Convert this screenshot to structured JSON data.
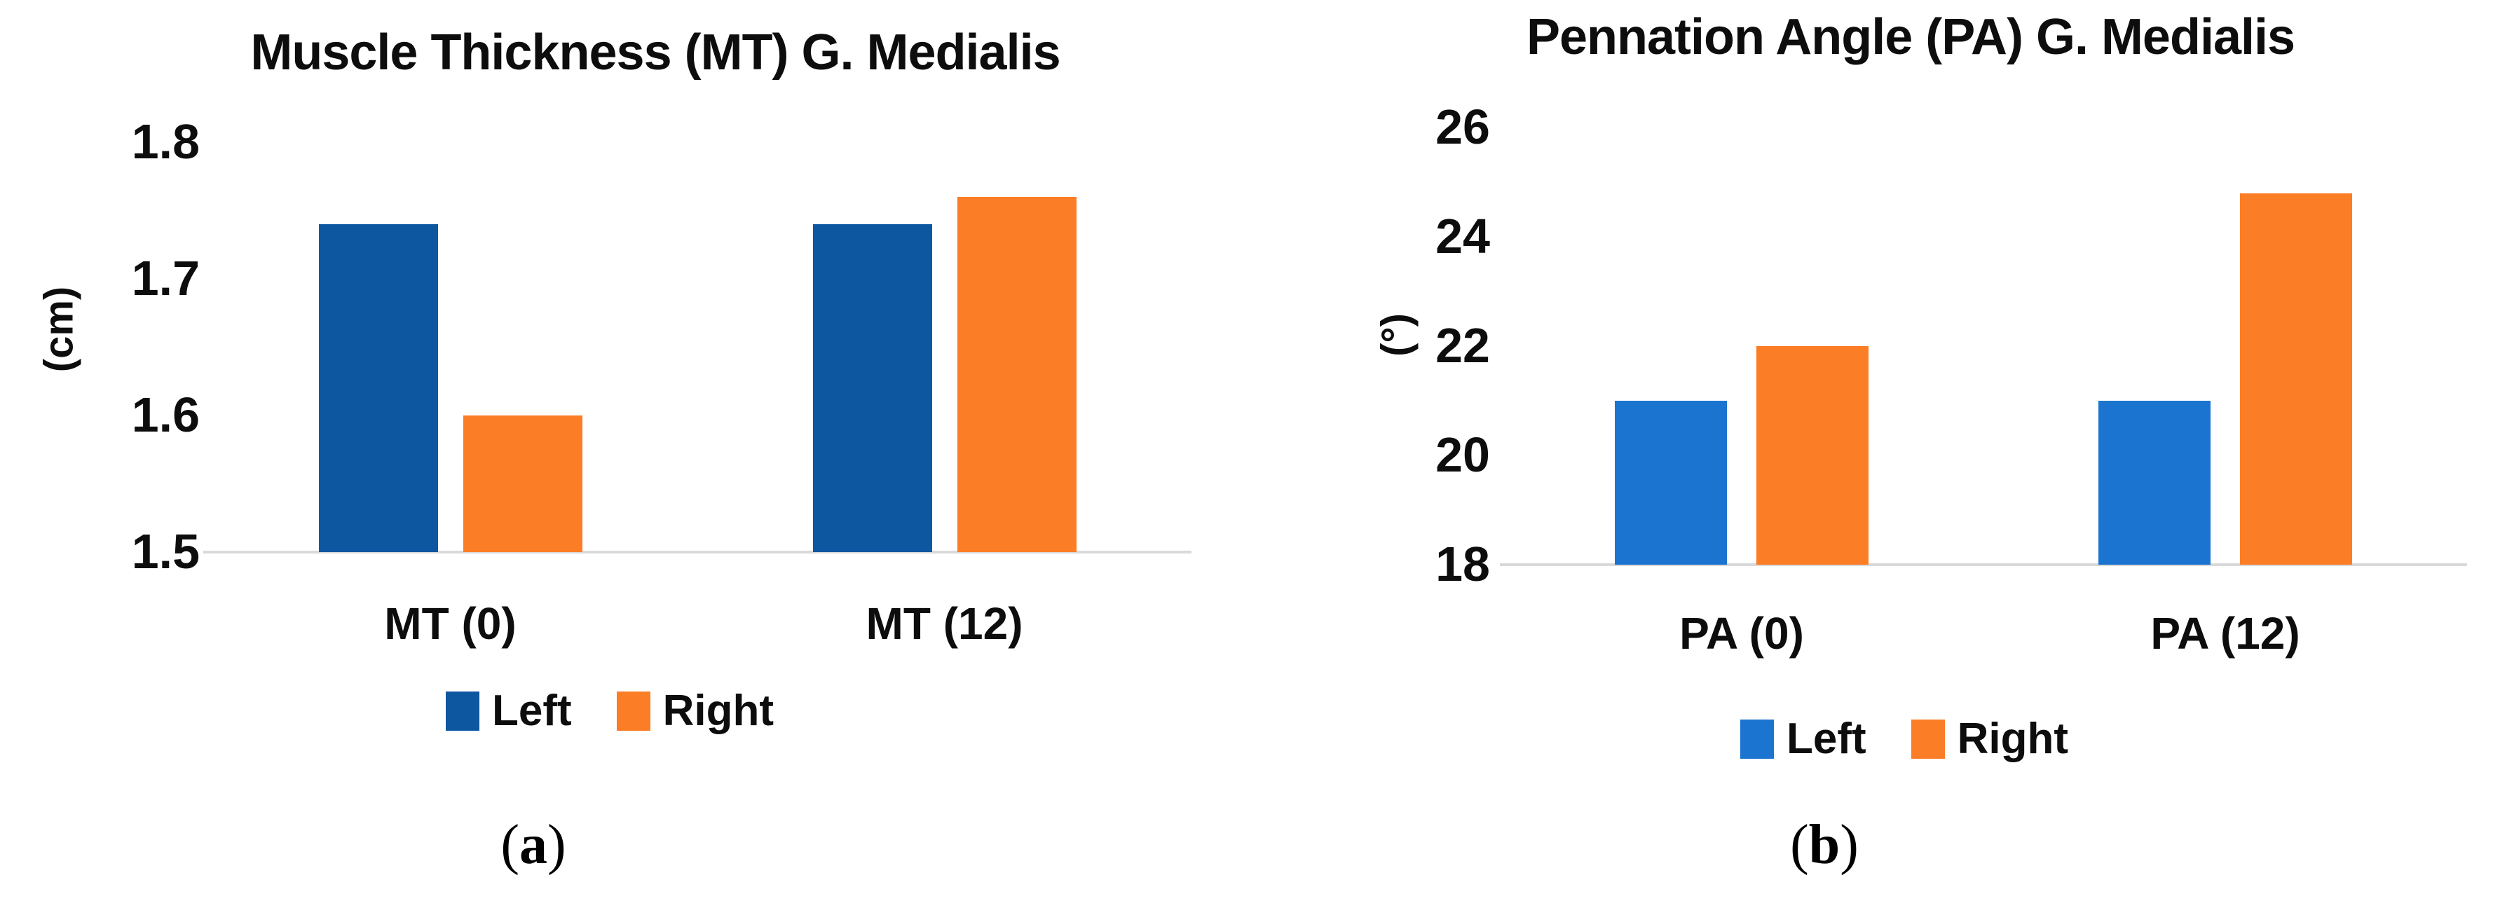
{
  "figure": {
    "background": "#FFFFFF",
    "axis_line_color": "#D9D9D9",
    "text_color": "#0D0D0D"
  },
  "chart_data": [
    {
      "id": "a",
      "type": "bar",
      "title": "Muscle Thickness (MT) G. Medialis",
      "ylabel": "(cm)",
      "xlabel": "",
      "ylim": [
        1.5,
        1.8
      ],
      "grid": false,
      "legend_position": "bottom",
      "yticks": [
        {
          "label": "1.8",
          "value": 1.8
        },
        {
          "label": "1.7",
          "value": 1.7
        },
        {
          "label": "1.6",
          "value": 1.6
        },
        {
          "label": "1.5",
          "value": 1.5
        }
      ],
      "categories": [
        "MT (0)",
        "MT (12)"
      ],
      "series": [
        {
          "name": "Left",
          "color": "#0D57A1",
          "values": [
            1.74,
            1.74
          ]
        },
        {
          "name": "Right",
          "color": "#FB7D25",
          "values": [
            1.6,
            1.76
          ]
        }
      ],
      "caption": {
        "open": "(",
        "letter": "a",
        "close": ")"
      }
    },
    {
      "id": "b",
      "type": "bar",
      "title": "Pennation Angle (PA) G. Medialis",
      "ylabel": "(°)",
      "xlabel": "",
      "ylim": [
        18,
        26
      ],
      "grid": false,
      "legend_position": "bottom",
      "yticks": [
        {
          "label": "26",
          "value": 26
        },
        {
          "label": "24",
          "value": 24
        },
        {
          "label": "22",
          "value": 22
        },
        {
          "label": "20",
          "value": 20
        },
        {
          "label": "18",
          "value": 18
        }
      ],
      "categories": [
        "PA (0)",
        "PA (12)"
      ],
      "series": [
        {
          "name": "Left",
          "color": "#1B74CF",
          "values": [
            21,
            21
          ]
        },
        {
          "name": "Right",
          "color": "#FB7D25",
          "values": [
            22,
            24.8
          ]
        }
      ],
      "caption": {
        "open": "(",
        "letter": "b",
        "close": ")"
      }
    }
  ]
}
